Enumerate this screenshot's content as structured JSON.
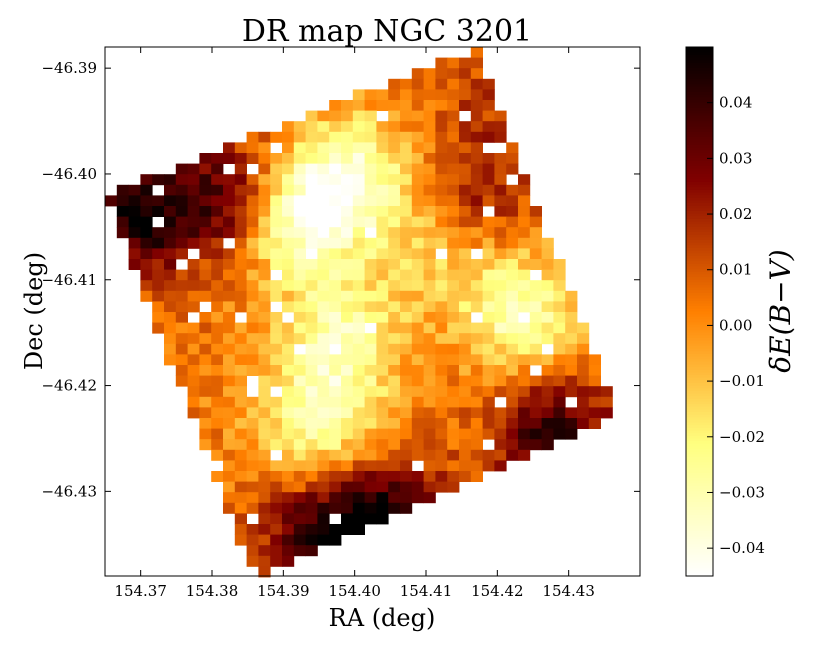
{
  "chart_data": {
    "type": "heatmap",
    "title": "DR map NGC 3201",
    "xlabel": "RA (deg)",
    "ylabel": "Dec (deg)",
    "colorbar_label": "δE(B−V)",
    "xlim": [
      154.365,
      154.44
    ],
    "ylim": [
      -46.438,
      -46.388
    ],
    "clim": [
      -0.045,
      0.05
    ],
    "colormap": "afmhot_r",
    "x_ticks": [
      154.37,
      154.38,
      154.39,
      154.4,
      154.41,
      154.42,
      154.43
    ],
    "x_tick_labels": [
      "154.37",
      "154.38",
      "154.39",
      "154.40",
      "154.41",
      "154.42",
      "154.43"
    ],
    "y_ticks": [
      -46.39,
      -46.4,
      -46.41,
      -46.42,
      -46.43
    ],
    "y_tick_labels": [
      "−46.39",
      "−46.40",
      "−46.41",
      "−46.42",
      "−46.43"
    ],
    "colorbar_ticks": [
      0.04,
      0.03,
      0.02,
      0.01,
      0.0,
      -0.01,
      -0.02,
      -0.03,
      -0.04
    ],
    "colorbar_tick_labels": [
      "0.04",
      "0.03",
      "0.02",
      "0.01",
      "0.00",
      "−0.01",
      "−0.02",
      "−0.03",
      "−0.04"
    ],
    "grid": false,
    "footprint_corners_ra_dec": [
      [
        154.417,
        -46.388
      ],
      [
        154.437,
        -46.423
      ],
      [
        154.386,
        -46.438
      ],
      [
        154.365,
        -46.402
      ]
    ],
    "features": [
      {
        "ra": 154.392,
        "dec": -46.404,
        "value": -0.042
      },
      {
        "ra": 154.4,
        "dec": -46.4,
        "value": -0.03
      },
      {
        "ra": 154.398,
        "dec": -46.415,
        "value": -0.028
      },
      {
        "ra": 154.395,
        "dec": -46.423,
        "value": -0.03
      },
      {
        "ra": 154.423,
        "dec": -46.413,
        "value": -0.032
      },
      {
        "ra": 154.41,
        "dec": -46.407,
        "value": -0.012
      },
      {
        "ra": 154.37,
        "dec": -46.404,
        "value": 0.045
      },
      {
        "ra": 154.383,
        "dec": -46.402,
        "value": 0.036
      },
      {
        "ra": 154.405,
        "dec": -46.433,
        "value": 0.046
      },
      {
        "ra": 154.395,
        "dec": -46.435,
        "value": 0.04
      },
      {
        "ra": 154.428,
        "dec": -46.425,
        "value": 0.042
      },
      {
        "ra": 154.417,
        "dec": -46.402,
        "value": 0.022
      },
      {
        "ra": 154.42,
        "dec": -46.393,
        "value": 0.014
      }
    ],
    "base_value": 0.004
  }
}
